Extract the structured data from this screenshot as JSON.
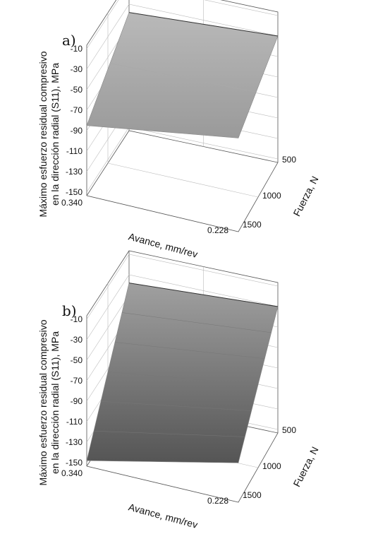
{
  "chart_data": [
    {
      "panel": "a)",
      "type": "surface",
      "x_label": "Avance, mm/rev",
      "x_ticks": [
        "0.340",
        "0.228"
      ],
      "y_label": "Fuerza, N",
      "y_ticks": [
        "500",
        "1000",
        "1500"
      ],
      "z_label_line1": "Máximo esfuerzo residual compresivo",
      "z_label_line2": "en la dirección radial (S11), MPa",
      "z_ticks": [
        "-10",
        "-30",
        "-50",
        "-70",
        "-90",
        "-110",
        "-130",
        "-150"
      ],
      "zlim": [
        -150,
        -10
      ],
      "surface": [
        {
          "avance": 0.34,
          "fuerza": 500,
          "value": -38
        },
        {
          "avance": 0.228,
          "fuerza": 500,
          "value": -30
        },
        {
          "avance": 0.34,
          "fuerza": 1500,
          "value": -85
        },
        {
          "avance": 0.228,
          "fuerza": 1500,
          "value": -62
        }
      ]
    },
    {
      "panel": "b)",
      "type": "surface",
      "x_label": "Avance, mm/rev",
      "x_ticks": [
        "0.340",
        "0.228"
      ],
      "y_label": "Fuerza, N",
      "y_ticks": [
        "500",
        "1000",
        "1500"
      ],
      "z_label_line1": "Máximo esfuerzo residual compresivo",
      "z_label_line2": "en la dirección radial (S11), MPa",
      "z_ticks": [
        "-10",
        "-30",
        "-50",
        "-70",
        "-90",
        "-110",
        "-130",
        "-150"
      ],
      "zlim": [
        -150,
        -10
      ],
      "surface": [
        {
          "avance": 0.34,
          "fuerza": 500,
          "value": -38
        },
        {
          "avance": 0.228,
          "fuerza": 500,
          "value": -30
        },
        {
          "avance": 0.34,
          "fuerza": 1500,
          "value": -148
        },
        {
          "avance": 0.228,
          "fuerza": 1500,
          "value": -115
        }
      ]
    }
  ]
}
